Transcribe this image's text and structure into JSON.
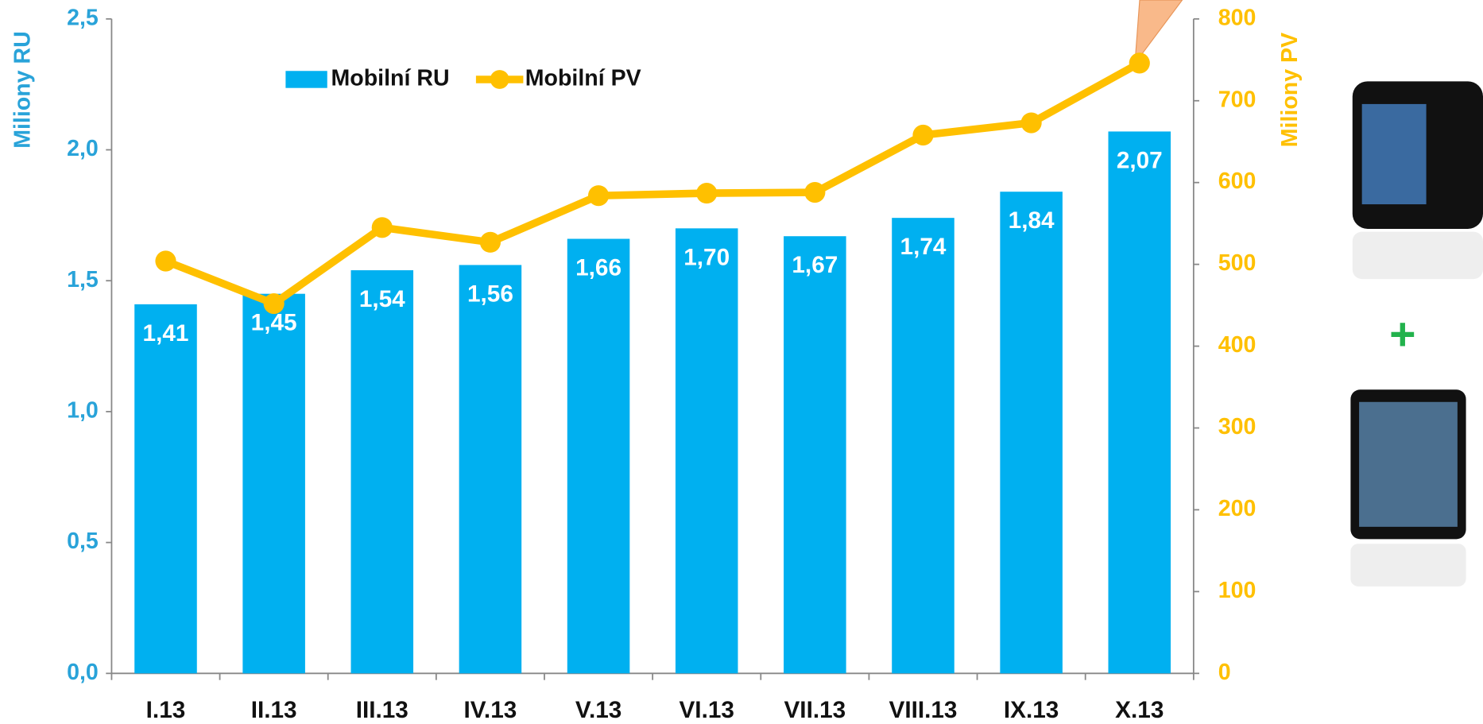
{
  "chart_data": {
    "type": "bar-line",
    "categories": [
      "I.13",
      "II.13",
      "III.13",
      "IV.13",
      "V.13",
      "VI.13",
      "VII.13",
      "VIII.13",
      "IX.13",
      "X.13"
    ],
    "series": [
      {
        "name": "Mobilní RU",
        "type": "bar",
        "color": "#00b0f0",
        "values": [
          1.41,
          1.45,
          1.54,
          1.56,
          1.66,
          1.7,
          1.67,
          1.74,
          1.84,
          2.07
        ],
        "value_labels": [
          "1,41",
          "1,45",
          "1,54",
          "1,56",
          "1,66",
          "1,70",
          "1,67",
          "1,74",
          "1,84",
          "2,07"
        ]
      },
      {
        "name": "Mobilní PV",
        "type": "line",
        "axis": "y2",
        "color": "#ffc000",
        "values": [
          504,
          452,
          545,
          527,
          584,
          587,
          588,
          658,
          673,
          746
        ]
      }
    ],
    "ylabel": "Miliony RU",
    "y2label": "Miliony PV",
    "ylim": [
      0,
      2.5
    ],
    "yticks": [
      {
        "value": 0,
        "label": "0,0"
      },
      {
        "value": 0.5,
        "label": "0,5"
      },
      {
        "value": 1,
        "label": "1,0"
      },
      {
        "value": 1.5,
        "label": "1,5"
      },
      {
        "value": 2,
        "label": "2,0"
      },
      {
        "value": 2.5,
        "label": "2,5"
      }
    ],
    "y2lim": [
      0,
      800
    ],
    "y2ticks": [
      0,
      100,
      200,
      300,
      400,
      500,
      600,
      700,
      800
    ]
  }
}
